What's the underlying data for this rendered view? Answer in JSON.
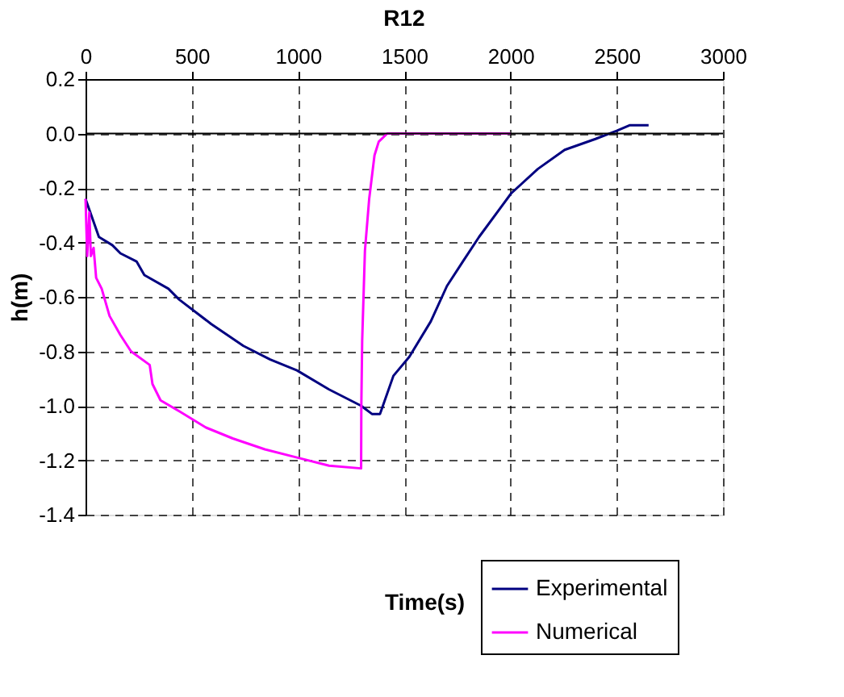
{
  "chart_data": {
    "type": "line",
    "title": "R12",
    "xlabel": "Time(s)",
    "ylabel": "h(m)",
    "xlim": [
      0,
      3000
    ],
    "xticks": [
      0,
      500,
      1000,
      1500,
      2000,
      2500,
      3000
    ],
    "ylim": [
      -1.4,
      0.2
    ],
    "yticks": [
      {
        "value": -1.4,
        "label": "-1.4"
      },
      {
        "value": -1.2,
        "label": "-1.2"
      },
      {
        "value": -1,
        "label": "-1.0"
      },
      {
        "value": -0.8,
        "label": "-0.8"
      },
      {
        "value": -0.6,
        "label": "-0.6"
      },
      {
        "value": -0.4,
        "label": "-0.4"
      },
      {
        "value": -0.2,
        "label": "-0.2"
      },
      {
        "value": 0,
        "label": "0.0"
      },
      {
        "value": 0.2,
        "label": "0.2"
      }
    ],
    "grid": true,
    "line_style": "solid",
    "marker": "none",
    "legend": "bottom right",
    "ref_lines": [
      {
        "axis": "y",
        "value": 0,
        "color": "#000000",
        "line_style": "solid"
      }
    ],
    "series": [
      {
        "name": "Experimental",
        "color": "#000080",
        "x": [
          0,
          63,
          126,
          164,
          240,
          277,
          390,
          441,
          592,
          743,
          869,
          995,
          1146,
          1297,
          1348,
          1386,
          1449,
          1524,
          1625,
          1701,
          1776,
          1852,
          2003,
          2129,
          2255,
          2400,
          2500,
          2560,
          2650
        ],
        "values": [
          -0.24,
          -0.38,
          -0.41,
          -0.44,
          -0.47,
          -0.52,
          -0.57,
          -0.61,
          -0.7,
          -0.78,
          -0.83,
          -0.87,
          -0.94,
          -1.0,
          -1.03,
          -1.03,
          -0.89,
          -0.82,
          -0.69,
          -0.56,
          -0.47,
          -0.38,
          -0.22,
          -0.13,
          -0.06,
          -0.02,
          0.01,
          0.03,
          0.03
        ]
      },
      {
        "name": "Numerical",
        "color": "#ff00ff",
        "x": [
          0,
          8,
          18,
          25,
          38,
          50,
          76,
          113,
          164,
          214,
          302,
          315,
          353,
          441,
          567,
          693,
          844,
          995,
          1146,
          1297,
          1298,
          1302,
          1315,
          1335,
          1360,
          1380,
          1420,
          2000
        ],
        "values": [
          -0.24,
          -0.45,
          -0.29,
          -0.45,
          -0.42,
          -0.53,
          -0.57,
          -0.67,
          -0.74,
          -0.8,
          -0.85,
          -0.92,
          -0.98,
          -1.02,
          -1.08,
          -1.12,
          -1.16,
          -1.19,
          -1.22,
          -1.23,
          -1.0,
          -0.76,
          -0.43,
          -0.24,
          -0.08,
          -0.03,
          0,
          0
        ]
      }
    ]
  }
}
